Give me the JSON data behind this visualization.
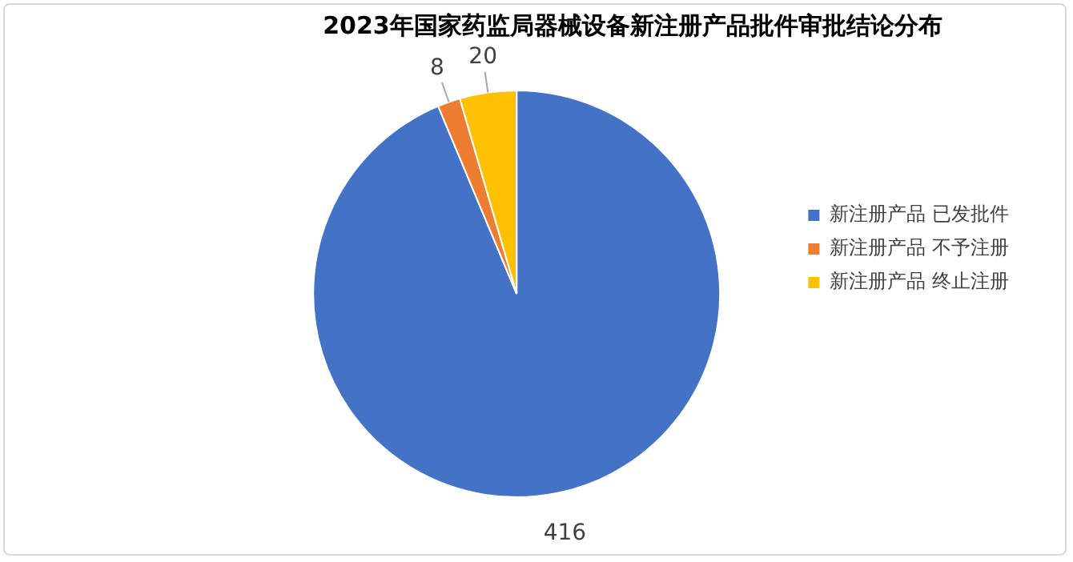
{
  "chart_data": {
    "type": "pie",
    "title": "2023年国家药监局器械设备新注册产品批件审批结论分布",
    "categories": [
      "新注册产品 已发批件",
      "新注册产品 不予注册",
      "新注册产品 终止注册"
    ],
    "values": [
      416,
      8,
      20
    ],
    "colors": [
      "#4472c4",
      "#ed7d31",
      "#ffc000"
    ],
    "data_labels": true,
    "legend": "right"
  }
}
